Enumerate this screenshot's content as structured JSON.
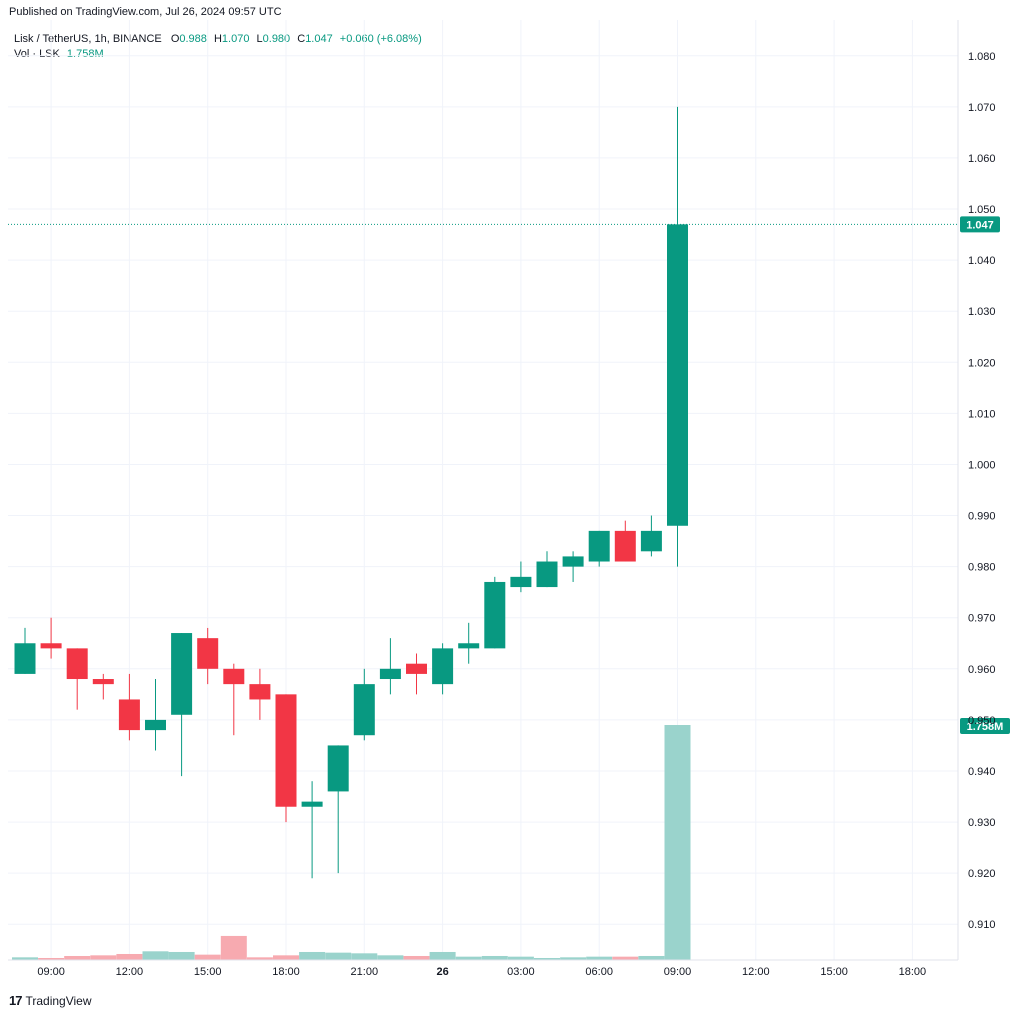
{
  "header": {
    "published": "Published on TradingView.com, Jul 26, 2024 09:57 UTC"
  },
  "legend": {
    "symbol": "Lisk / TetherUS, 1h, BINANCE",
    "o_label": "O",
    "o_value": "0.988",
    "h_label": "H",
    "h_value": "1.070",
    "l_label": "L",
    "l_value": "0.980",
    "c_label": "C",
    "c_value": "1.047",
    "change": "+0.060 (+6.08%)",
    "vol_label": "Vol · LSK",
    "vol_value": "1.758M"
  },
  "footer": {
    "logo_icon": "tradingview-logo-icon",
    "brand": "TradingView"
  },
  "colors": {
    "up": "#089981",
    "down": "#f23645",
    "vol_up": "#9ad3cc",
    "vol_down": "#f7aab0",
    "grid": "#f0f3fa",
    "axis_text": "#131722"
  },
  "chart_data": {
    "type": "candlestick",
    "symbol": "Lisk / TetherUS",
    "interval": "1h",
    "exchange": "BINANCE",
    "ylim": [
      0.903,
      1.087
    ],
    "y_ticks": [
      "1.080",
      "1.070",
      "1.060",
      "1.050",
      "1.040",
      "1.030",
      "1.020",
      "1.010",
      "1.000",
      "0.990",
      "0.980",
      "0.970",
      "0.960",
      "0.950",
      "0.940",
      "0.930",
      "0.920",
      "0.910"
    ],
    "x_ticks": [
      {
        "index": 1,
        "label": "09:00"
      },
      {
        "index": 4,
        "label": "12:00"
      },
      {
        "index": 7,
        "label": "15:00"
      },
      {
        "index": 10,
        "label": "18:00"
      },
      {
        "index": 13,
        "label": "21:00"
      },
      {
        "index": 16,
        "label": "26"
      },
      {
        "index": 19,
        "label": "03:00"
      },
      {
        "index": 22,
        "label": "06:00"
      },
      {
        "index": 25,
        "label": "09:00"
      },
      {
        "index": 28,
        "label": "12:00"
      },
      {
        "index": 31,
        "label": "15:00"
      },
      {
        "index": 34,
        "label": "18:00"
      }
    ],
    "last_price": "1.047",
    "last_volume": "1.758M",
    "volume_max": 1.758,
    "candles": [
      {
        "o": 0.959,
        "h": 0.968,
        "l": 0.959,
        "c": 0.965,
        "v": 0.02
      },
      {
        "o": 0.965,
        "h": 0.97,
        "l": 0.962,
        "c": 0.964,
        "v": 0.015
      },
      {
        "o": 0.964,
        "h": 0.964,
        "l": 0.952,
        "c": 0.958,
        "v": 0.03
      },
      {
        "o": 0.958,
        "h": 0.959,
        "l": 0.954,
        "c": 0.957,
        "v": 0.035
      },
      {
        "o": 0.954,
        "h": 0.959,
        "l": 0.946,
        "c": 0.948,
        "v": 0.045
      },
      {
        "o": 0.948,
        "h": 0.958,
        "l": 0.944,
        "c": 0.95,
        "v": 0.065
      },
      {
        "o": 0.951,
        "h": 0.967,
        "l": 0.939,
        "c": 0.967,
        "v": 0.06
      },
      {
        "o": 0.966,
        "h": 0.968,
        "l": 0.957,
        "c": 0.96,
        "v": 0.04
      },
      {
        "o": 0.96,
        "h": 0.961,
        "l": 0.947,
        "c": 0.957,
        "v": 0.18
      },
      {
        "o": 0.957,
        "h": 0.96,
        "l": 0.95,
        "c": 0.954,
        "v": 0.02
      },
      {
        "o": 0.955,
        "h": 0.955,
        "l": 0.93,
        "c": 0.933,
        "v": 0.035
      },
      {
        "o": 0.933,
        "h": 0.938,
        "l": 0.919,
        "c": 0.934,
        "v": 0.06
      },
      {
        "o": 0.936,
        "h": 0.945,
        "l": 0.92,
        "c": 0.945,
        "v": 0.055
      },
      {
        "o": 0.947,
        "h": 0.96,
        "l": 0.946,
        "c": 0.957,
        "v": 0.05
      },
      {
        "o": 0.958,
        "h": 0.966,
        "l": 0.955,
        "c": 0.96,
        "v": 0.035
      },
      {
        "o": 0.961,
        "h": 0.963,
        "l": 0.955,
        "c": 0.959,
        "v": 0.03
      },
      {
        "o": 0.957,
        "h": 0.965,
        "l": 0.955,
        "c": 0.964,
        "v": 0.06
      },
      {
        "o": 0.964,
        "h": 0.969,
        "l": 0.961,
        "c": 0.965,
        "v": 0.025
      },
      {
        "o": 0.964,
        "h": 0.978,
        "l": 0.964,
        "c": 0.977,
        "v": 0.03
      },
      {
        "o": 0.976,
        "h": 0.981,
        "l": 0.975,
        "c": 0.978,
        "v": 0.025
      },
      {
        "o": 0.976,
        "h": 0.983,
        "l": 0.976,
        "c": 0.981,
        "v": 0.015
      },
      {
        "o": 0.98,
        "h": 0.983,
        "l": 0.977,
        "c": 0.982,
        "v": 0.02
      },
      {
        "o": 0.981,
        "h": 0.987,
        "l": 0.98,
        "c": 0.987,
        "v": 0.025
      },
      {
        "o": 0.987,
        "h": 0.989,
        "l": 0.981,
        "c": 0.981,
        "v": 0.025
      },
      {
        "o": 0.983,
        "h": 0.99,
        "l": 0.982,
        "c": 0.987,
        "v": 0.03
      },
      {
        "o": 0.988,
        "h": 1.07,
        "l": 0.98,
        "c": 1.047,
        "v": 1.758
      }
    ]
  }
}
